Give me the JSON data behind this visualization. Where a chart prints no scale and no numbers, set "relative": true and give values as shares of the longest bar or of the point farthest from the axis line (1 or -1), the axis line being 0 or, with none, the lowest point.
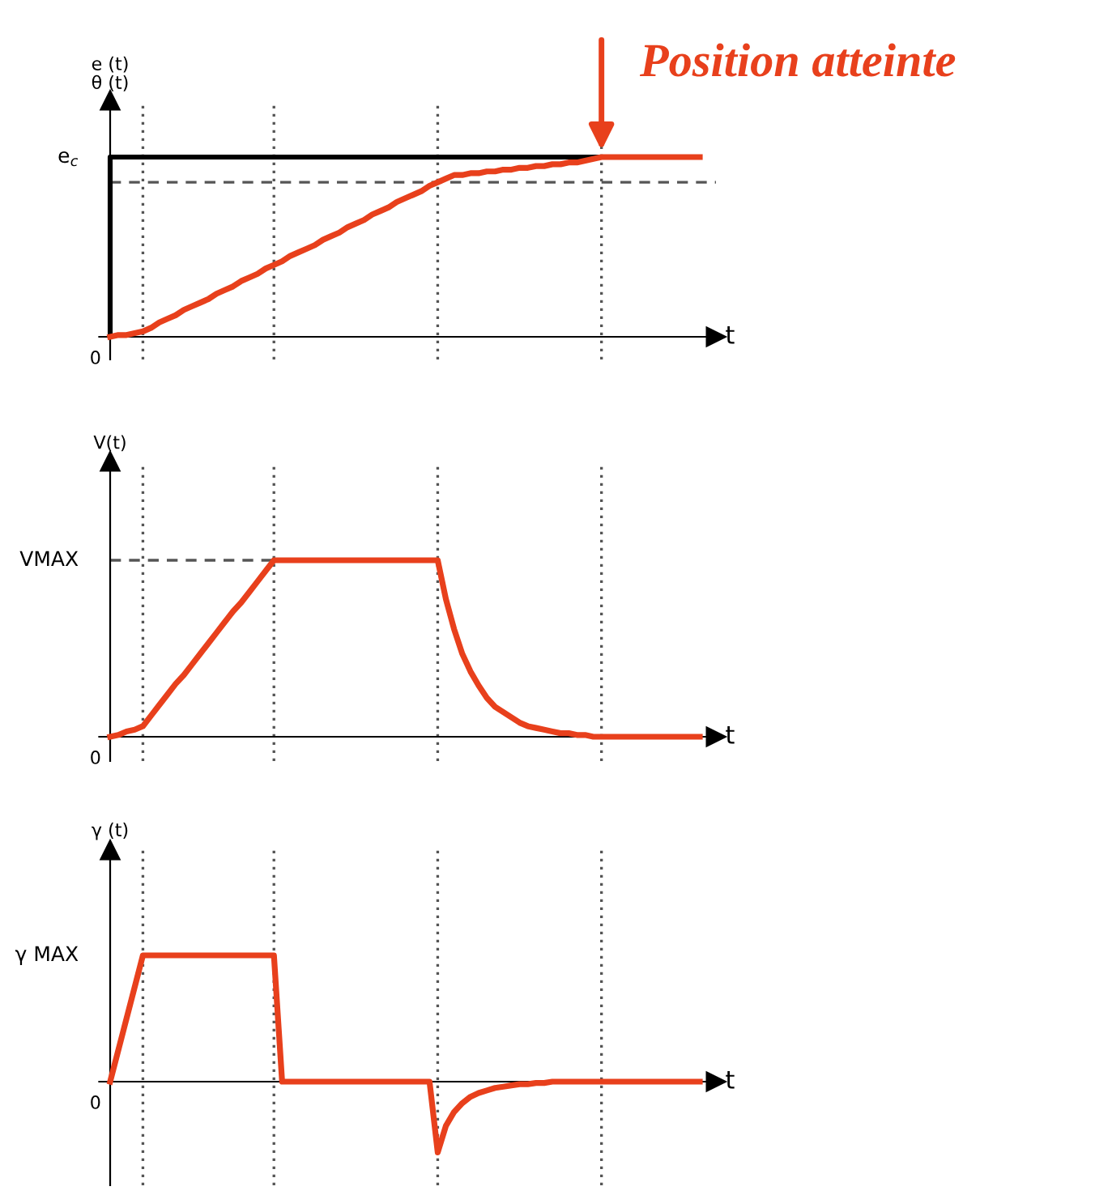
{
  "chart_data": [
    {
      "type": "line",
      "relative": true,
      "title": "Position atteinte",
      "xlabel": "t",
      "ylabel": "e (t)\nθ (t)",
      "categories": [
        null,
        null,
        null,
        null,
        null,
        null,
        null,
        null,
        null,
        null,
        null,
        null,
        null,
        null,
        null,
        null,
        null,
        null,
        null,
        null,
        null,
        null,
        null,
        null,
        null,
        null,
        null,
        null,
        null,
        null,
        null,
        null,
        null,
        null,
        null,
        null,
        null,
        null,
        null,
        null,
        null,
        null,
        null,
        null,
        null,
        null,
        null,
        null,
        null,
        null,
        null,
        null,
        null,
        null,
        null,
        null,
        null,
        null,
        null,
        null,
        null,
        null,
        null,
        null,
        null,
        null,
        null,
        null,
        null,
        null,
        null,
        null,
        null
      ],
      "series": [
        {
          "type": "step",
          "color": "#000000",
          "values": [
            0,
            1,
            1,
            1,
            1,
            1,
            1,
            1,
            1,
            1,
            1,
            1,
            1,
            1,
            1,
            1,
            1,
            1,
            1,
            1,
            1,
            1,
            1,
            1,
            1,
            1,
            1,
            1,
            1,
            1,
            1,
            1,
            1,
            1,
            1,
            1,
            1,
            1,
            1,
            1,
            1,
            1,
            1,
            1,
            1,
            1,
            1,
            1,
            1,
            1,
            1,
            1,
            1,
            1,
            1,
            1,
            1,
            1,
            1,
            1,
            1,
            null,
            null,
            null,
            null,
            null,
            null,
            null,
            null,
            null,
            null,
            null,
            null
          ]
        },
        {
          "color": "#e8401c",
          "values": [
            0,
            0.01,
            0.01,
            0.02,
            0.03,
            0.05,
            0.08,
            0.1,
            0.12,
            0.15,
            0.17,
            0.19,
            0.21,
            0.24,
            0.26,
            0.28,
            0.31,
            0.33,
            0.35,
            0.38,
            0.4,
            0.42,
            0.45,
            0.47,
            0.49,
            0.51,
            0.54,
            0.56,
            0.58,
            0.61,
            0.63,
            0.65,
            0.68,
            0.7,
            0.72,
            0.75,
            0.77,
            0.79,
            0.81,
            0.84,
            0.86,
            0.88,
            0.9,
            0.9,
            0.91,
            0.91,
            0.92,
            0.92,
            0.93,
            0.93,
            0.94,
            0.94,
            0.95,
            0.95,
            0.96,
            0.96,
            0.97,
            0.97,
            0.98,
            0.99,
            1,
            1,
            1,
            1,
            1,
            1,
            1,
            1,
            1,
            1,
            1,
            1,
            1
          ]
        }
      ],
      "grid": "x",
      "ref_lines": [
        {
          "axis": "y",
          "value": 0.86,
          "color": "#555555",
          "line_style": "dashed"
        }
      ],
      "annotations": [
        "0",
        "e$_{c}$"
      ]
    },
    {
      "type": "line",
      "relative": true,
      "xlabel": "t",
      "ylabel": "V(t)",
      "categories": [
        null,
        null,
        null,
        null,
        null,
        null,
        null,
        null,
        null,
        null,
        null,
        null,
        null,
        null,
        null,
        null,
        null,
        null,
        null,
        null,
        null,
        null,
        null,
        null,
        null,
        null,
        null,
        null,
        null,
        null,
        null,
        null,
        null,
        null,
        null,
        null,
        null,
        null,
        null,
        null,
        null,
        null,
        null,
        null,
        null,
        null,
        null,
        null,
        null,
        null,
        null,
        null,
        null,
        null,
        null,
        null,
        null,
        null,
        null,
        null,
        null,
        null,
        null,
        null,
        null,
        null,
        null,
        null,
        null,
        null,
        null,
        null,
        null
      ],
      "series": [
        {
          "color": "#e8401c",
          "values": [
            0,
            0.01,
            0.03,
            0.04,
            0.06,
            0.12,
            0.18,
            0.24,
            0.3,
            0.35,
            0.41,
            0.47,
            0.53,
            0.59,
            0.65,
            0.71,
            0.76,
            0.82,
            0.88,
            0.94,
            1,
            1,
            1,
            1,
            1,
            1,
            1,
            1,
            1,
            1,
            1,
            1,
            1,
            1,
            1,
            1,
            1,
            1,
            1,
            1,
            1,
            0.78,
            0.61,
            0.47,
            0.37,
            0.29,
            0.22,
            0.17,
            0.14,
            0.11,
            0.08,
            0.06,
            0.05,
            0.04,
            0.03,
            0.02,
            0.02,
            0.01,
            0.01,
            0,
            0,
            0,
            0,
            0,
            0,
            0,
            0,
            0,
            0,
            0,
            0,
            0,
            0
          ]
        }
      ],
      "grid": "x",
      "ref_lines": [
        {
          "axis": "y",
          "value": 1,
          "color": "#555555",
          "line_style": "dashed"
        }
      ],
      "annotations": [
        "0",
        "VMAX"
      ]
    },
    {
      "type": "line",
      "relative": true,
      "xlabel": "t",
      "ylabel": "γ (t)",
      "categories": [
        null,
        null,
        null,
        null,
        null,
        null,
        null,
        null,
        null,
        null,
        null,
        null,
        null,
        null,
        null,
        null,
        null,
        null,
        null,
        null,
        null,
        null,
        null,
        null,
        null,
        null,
        null,
        null,
        null,
        null,
        null,
        null,
        null,
        null,
        null,
        null,
        null,
        null,
        null,
        null,
        null,
        null,
        null,
        null,
        null,
        null,
        null,
        null,
        null,
        null,
        null,
        null,
        null,
        null,
        null,
        null,
        null,
        null,
        null,
        null,
        null,
        null,
        null,
        null,
        null,
        null,
        null,
        null,
        null,
        null,
        null,
        null,
        null
      ],
      "series": [
        {
          "color": "#e8401c",
          "values": [
            0,
            0.25,
            0.5,
            0.75,
            1,
            1,
            1,
            1,
            1,
            1,
            1,
            1,
            1,
            1,
            1,
            1,
            1,
            1,
            1,
            1,
            1,
            0,
            0,
            0,
            0,
            0,
            0,
            0,
            0,
            0,
            0,
            0,
            0,
            0,
            0,
            0,
            0,
            0,
            0,
            0,
            -0.56,
            -0.35,
            -0.24,
            -0.17,
            -0.12,
            -0.09,
            -0.07,
            -0.05,
            -0.04,
            -0.03,
            -0.02,
            -0.02,
            -0.01,
            -0.01,
            0,
            0,
            0,
            0,
            0,
            0,
            0,
            0,
            0,
            0,
            0,
            0,
            0,
            0,
            0,
            0,
            0,
            0,
            0
          ]
        }
      ],
      "grid": "x",
      "annotations": [
        "0",
        "γ MAX"
      ]
    }
  ]
}
